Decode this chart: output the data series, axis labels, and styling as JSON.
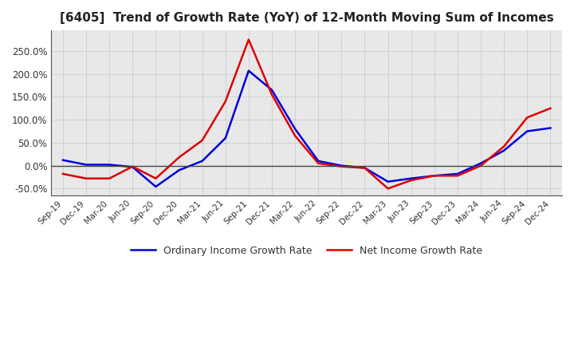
{
  "title": "[6405]  Trend of Growth Rate (YoY) of 12-Month Moving Sum of Incomes",
  "title_fontsize": 11,
  "ylim": [
    -65,
    295
  ],
  "yticks": [
    -50,
    0,
    50,
    100,
    150,
    200,
    250
  ],
  "background_color": "#ffffff",
  "plot_bg_color": "#e8e8e8",
  "grid_color": "#aaaaaa",
  "legend_labels": [
    "Ordinary Income Growth Rate",
    "Net Income Growth Rate"
  ],
  "line_colors": [
    "#0000dd",
    "#dd0000"
  ],
  "x_labels": [
    "Sep-19",
    "Dec-19",
    "Mar-20",
    "Jun-20",
    "Sep-20",
    "Dec-20",
    "Mar-21",
    "Jun-21",
    "Sep-21",
    "Dec-21",
    "Mar-22",
    "Jun-22",
    "Sep-22",
    "Dec-22",
    "Mar-23",
    "Jun-23",
    "Sep-23",
    "Dec-23",
    "Mar-24",
    "Jun-24",
    "Sep-24",
    "Dec-24"
  ],
  "ordinary_income_growth": [
    12.0,
    2.0,
    2.0,
    -3.0,
    -46.0,
    -10.0,
    10.0,
    60.0,
    207.0,
    165.0,
    80.0,
    10.0,
    0.0,
    -5.0,
    -35.0,
    -28.0,
    -22.0,
    -18.0,
    5.0,
    33.0,
    75.0,
    82.0
  ],
  "net_income_growth": [
    -18.0,
    -28.0,
    -28.0,
    -2.0,
    -28.0,
    18.0,
    55.0,
    140.0,
    275.0,
    155.0,
    65.0,
    5.0,
    -2.0,
    -5.0,
    -50.0,
    -32.0,
    -22.0,
    -22.0,
    0.0,
    42.0,
    105.0,
    125.0
  ]
}
